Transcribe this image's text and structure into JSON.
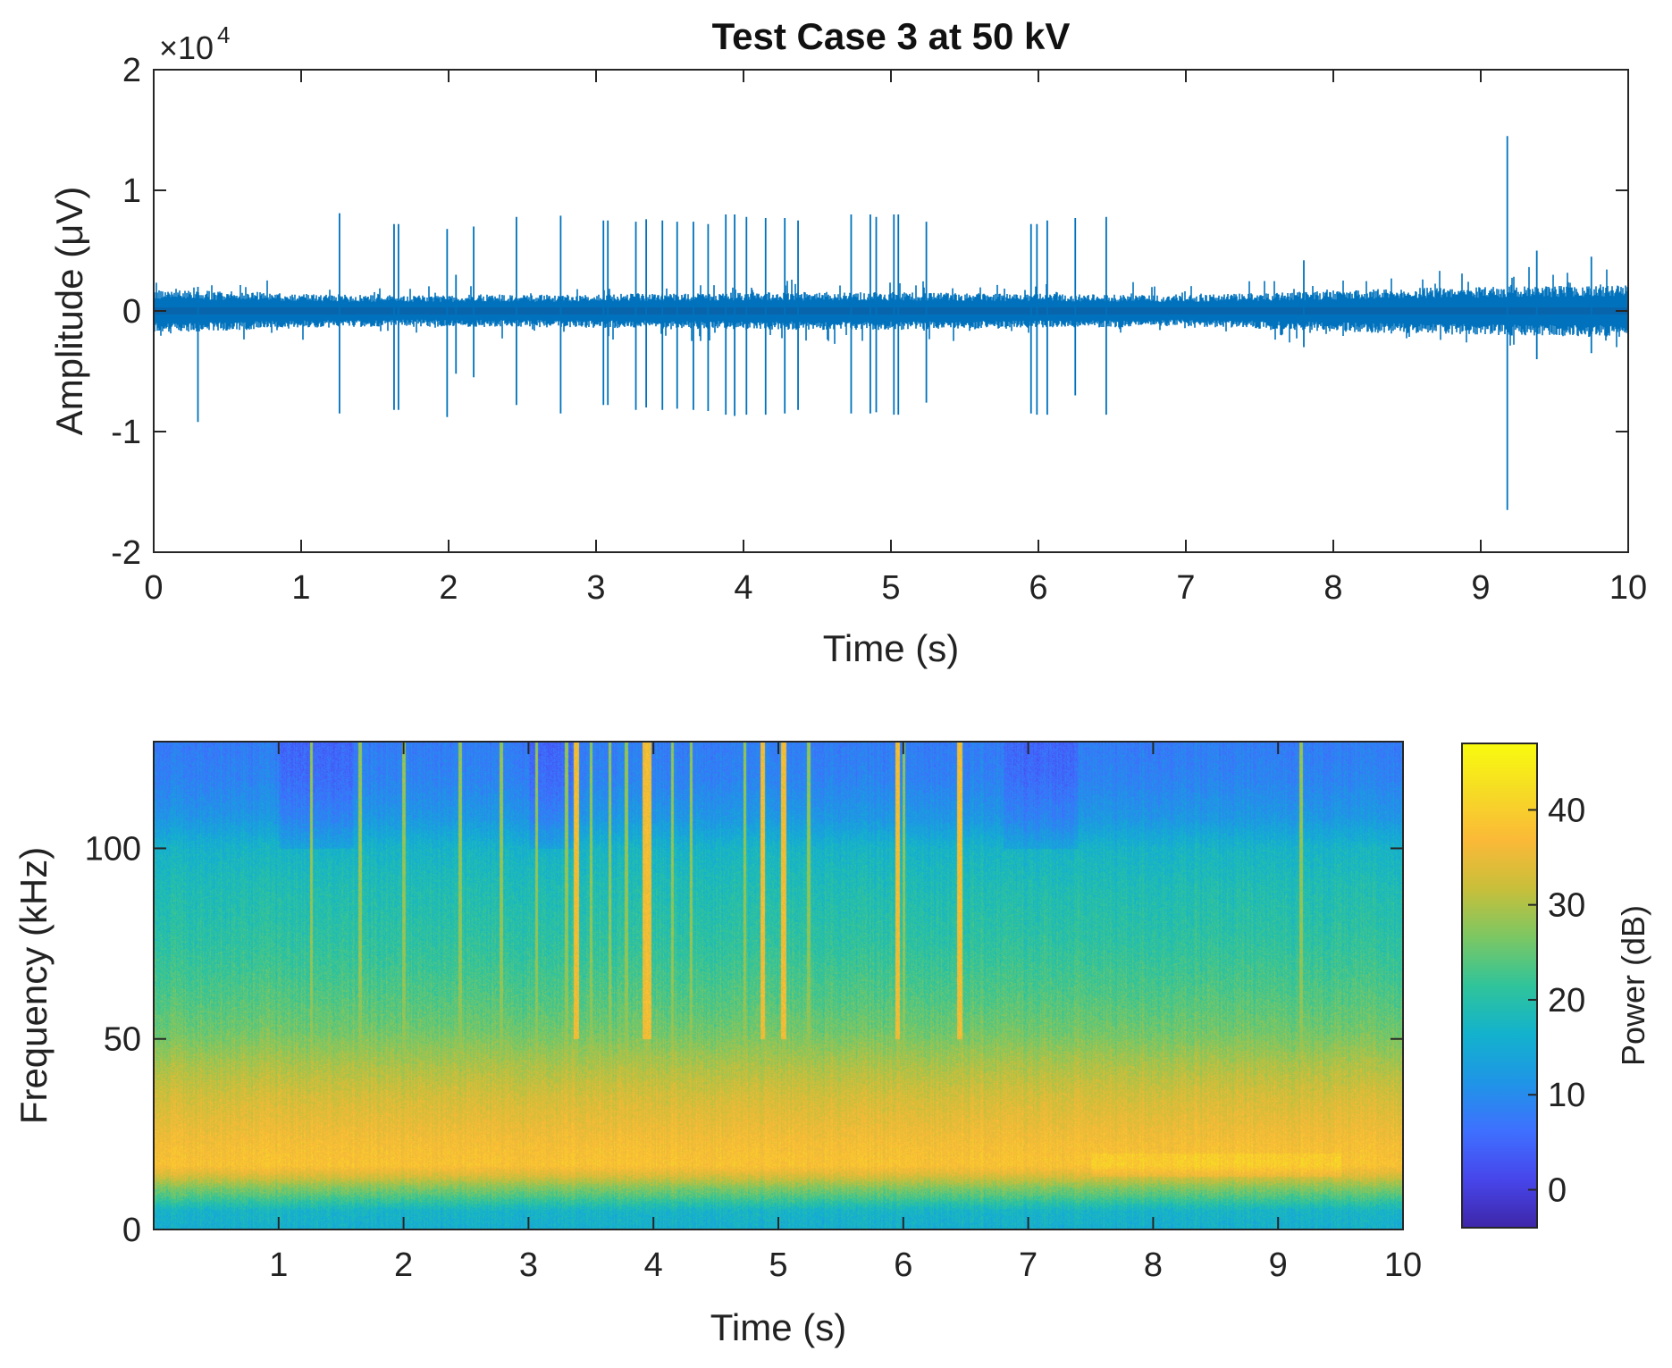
{
  "chart_data": [
    {
      "type": "line",
      "title": "Test Case 3 at 50 kV",
      "xlabel": "Time (s)",
      "ylabel": "Amplitude (μV)",
      "y_exponent_base": "×10",
      "y_exponent_power": "4",
      "xlim": [
        0,
        10
      ],
      "ylim": [
        -2,
        2
      ],
      "xticks": [
        0,
        1,
        2,
        3,
        4,
        5,
        6,
        7,
        8,
        9,
        10
      ],
      "yticks": [
        -2,
        -1,
        0,
        1,
        2
      ],
      "xtick_labels": [
        "0",
        "1",
        "2",
        "3",
        "4",
        "5",
        "6",
        "7",
        "8",
        "9",
        "10"
      ],
      "ytick_labels": [
        "-2",
        "-1",
        "0",
        "1",
        "2"
      ],
      "series_color": "#0072BD",
      "noise_band_envelope": [
        {
          "t": 0,
          "amp": 0.18
        },
        {
          "t": 1.5,
          "amp": 0.13
        },
        {
          "t": 3,
          "amp": 0.14
        },
        {
          "t": 4.5,
          "amp": 0.16
        },
        {
          "t": 5.5,
          "amp": 0.15
        },
        {
          "t": 7,
          "amp": 0.13
        },
        {
          "t": 8.5,
          "amp": 0.19
        },
        {
          "t": 10,
          "amp": 0.22
        }
      ],
      "spikes": [
        {
          "t": 0.3,
          "pos": 0.2,
          "neg": -0.92
        },
        {
          "t": 1.26,
          "pos": 0.81,
          "neg": -0.85
        },
        {
          "t": 1.63,
          "pos": 0.72,
          "neg": -0.82
        },
        {
          "t": 1.66,
          "pos": 0.72,
          "neg": -0.82
        },
        {
          "t": 1.99,
          "pos": 0.68,
          "neg": -0.88
        },
        {
          "t": 2.05,
          "pos": 0.3,
          "neg": -0.52
        },
        {
          "t": 2.17,
          "pos": 0.7,
          "neg": -0.55
        },
        {
          "t": 2.46,
          "pos": 0.78,
          "neg": -0.78
        },
        {
          "t": 2.76,
          "pos": 0.79,
          "neg": -0.85
        },
        {
          "t": 3.05,
          "pos": 0.75,
          "neg": -0.78
        },
        {
          "t": 3.08,
          "pos": 0.75,
          "neg": -0.78
        },
        {
          "t": 3.27,
          "pos": 0.74,
          "neg": -0.82
        },
        {
          "t": 3.34,
          "pos": 0.76,
          "neg": -0.8
        },
        {
          "t": 3.45,
          "pos": 0.75,
          "neg": -0.82
        },
        {
          "t": 3.55,
          "pos": 0.74,
          "neg": -0.81
        },
        {
          "t": 3.66,
          "pos": 0.74,
          "neg": -0.82
        },
        {
          "t": 3.76,
          "pos": 0.72,
          "neg": -0.83
        },
        {
          "t": 3.88,
          "pos": 0.8,
          "neg": -0.86
        },
        {
          "t": 3.94,
          "pos": 0.8,
          "neg": -0.87
        },
        {
          "t": 4.02,
          "pos": 0.78,
          "neg": -0.86
        },
        {
          "t": 4.15,
          "pos": 0.77,
          "neg": -0.86
        },
        {
          "t": 4.28,
          "pos": 0.77,
          "neg": -0.85
        },
        {
          "t": 4.37,
          "pos": 0.75,
          "neg": -0.82
        },
        {
          "t": 4.73,
          "pos": 0.8,
          "neg": -0.85
        },
        {
          "t": 4.86,
          "pos": 0.8,
          "neg": -0.85
        },
        {
          "t": 4.9,
          "pos": 0.78,
          "neg": -0.84
        },
        {
          "t": 5.02,
          "pos": 0.8,
          "neg": -0.86
        },
        {
          "t": 5.05,
          "pos": 0.8,
          "neg": -0.86
        },
        {
          "t": 5.24,
          "pos": 0.74,
          "neg": -0.76
        },
        {
          "t": 5.95,
          "pos": 0.72,
          "neg": -0.85
        },
        {
          "t": 5.99,
          "pos": 0.72,
          "neg": -0.86
        },
        {
          "t": 6.06,
          "pos": 0.75,
          "neg": -0.86
        },
        {
          "t": 6.25,
          "pos": 0.77,
          "neg": -0.7
        },
        {
          "t": 6.46,
          "pos": 0.78,
          "neg": -0.86
        },
        {
          "t": 7.8,
          "pos": 0.42,
          "neg": -0.3
        },
        {
          "t": 9.18,
          "pos": 1.45,
          "neg": -1.65
        },
        {
          "t": 9.38,
          "pos": 0.5,
          "neg": -0.4
        },
        {
          "t": 9.75,
          "pos": 0.45,
          "neg": -0.35
        }
      ]
    },
    {
      "type": "heatmap",
      "xlabel": "Time (s)",
      "ylabel": "Frequency (kHz)",
      "xlim": [
        0,
        10
      ],
      "ylim": [
        0,
        128
      ],
      "xticks": [
        1,
        2,
        3,
        4,
        5,
        6,
        7,
        8,
        9,
        10
      ],
      "yticks": [
        0,
        50,
        100
      ],
      "xtick_labels": [
        "1",
        "2",
        "3",
        "4",
        "5",
        "6",
        "7",
        "8",
        "9",
        "10"
      ],
      "ytick_labels": [
        "0",
        "50",
        "100"
      ],
      "colorbar": {
        "label": "Power (dB)",
        "range": [
          -4,
          47
        ],
        "ticks": [
          0,
          10,
          20,
          30,
          40
        ],
        "tick_labels": [
          "0",
          "10",
          "20",
          "30",
          "40"
        ],
        "colormap": "parula",
        "colormap_stops": [
          "#3e26a8",
          "#4746eb",
          "#3e70ff",
          "#1f95e6",
          "#13b2cd",
          "#30c49a",
          "#7cc763",
          "#c8bf3a",
          "#fbb938",
          "#f6db25",
          "#f9fb0e"
        ]
      },
      "frequency_power_profile_db": [
        {
          "f": 0,
          "db": 16
        },
        {
          "f": 5,
          "db": 17
        },
        {
          "f": 9,
          "db": 24
        },
        {
          "f": 11,
          "db": 27
        },
        {
          "f": 14,
          "db": 33
        },
        {
          "f": 17,
          "db": 38
        },
        {
          "f": 22,
          "db": 37
        },
        {
          "f": 28,
          "db": 35
        },
        {
          "f": 35,
          "db": 33
        },
        {
          "f": 43,
          "db": 30
        },
        {
          "f": 52,
          "db": 26
        },
        {
          "f": 60,
          "db": 24
        },
        {
          "f": 75,
          "db": 21
        },
        {
          "f": 90,
          "db": 19
        },
        {
          "f": 100,
          "db": 17
        },
        {
          "f": 108,
          "db": 12
        },
        {
          "f": 118,
          "db": 9
        },
        {
          "f": 128,
          "db": 8
        }
      ],
      "broadband_event_times": [
        1.26,
        1.65,
        2.0,
        2.45,
        2.78,
        3.06,
        3.3,
        3.38,
        3.5,
        3.65,
        3.78,
        3.93,
        3.96,
        4.15,
        4.3,
        4.73,
        4.87,
        5.04,
        5.24,
        5.95,
        6.0,
        6.45,
        9.18
      ],
      "strong_event_times": [
        3.38,
        3.93,
        3.96,
        4.87,
        5.04,
        5.95,
        6.45
      ]
    }
  ]
}
